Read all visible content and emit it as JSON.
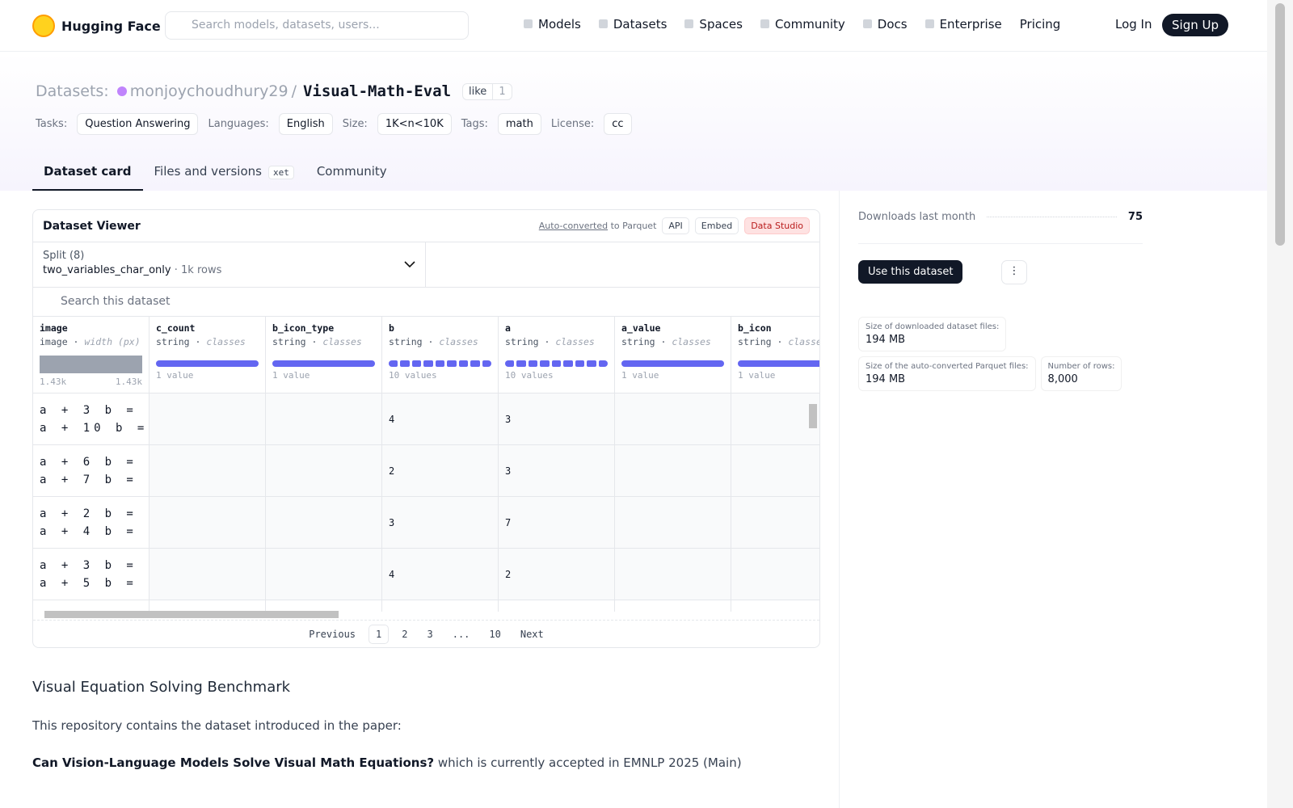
{
  "nav": {
    "brand": "Hugging Face",
    "search_placeholder": "Search models, datasets, users...",
    "links": [
      "Models",
      "Datasets",
      "Spaces",
      "Community",
      "Docs",
      "Enterprise",
      "Pricing"
    ],
    "login": "Log In",
    "signup": "Sign Up"
  },
  "header": {
    "section": "Datasets:",
    "owner": "monjoychoudhury29",
    "separator": "/",
    "name": "Visual-Math-Eval",
    "like": "like",
    "likes": 1,
    "tags": [
      {
        "key": "Tasks:",
        "value": "Question Answering"
      },
      {
        "key": "Languages:",
        "value": "English"
      },
      {
        "key": "Size:",
        "value": "1K<n<10K"
      },
      {
        "key": "Tags:",
        "value": "math"
      },
      {
        "key": "License:",
        "value": "cc"
      }
    ]
  },
  "tabs": [
    "Dataset card",
    "Files and versions",
    "Community"
  ],
  "xet_badge": "xet",
  "viewer": {
    "title": "Dataset Viewer",
    "auto_converted": "Auto-converted",
    "to_parquet": "to Parquet",
    "api": "API",
    "embed": "Embed",
    "data_studio": "Data Studio",
    "split_label": "Split (8)",
    "split": "two_variables_char_only",
    "rows_label": "1k rows",
    "search_placeholder": "Search this dataset",
    "columns": [
      {
        "name": "image",
        "type": "image",
        "detail": "width (px)",
        "summary": [
          "1.43k",
          "1.43k"
        ]
      },
      {
        "name": "c_count",
        "type": "string",
        "detail": "classes",
        "summary": [
          "1 value"
        ]
      },
      {
        "name": "b_icon_type",
        "type": "string",
        "detail": "classes",
        "summary": [
          "1 value"
        ]
      },
      {
        "name": "b",
        "type": "string",
        "detail": "classes",
        "summary": [
          "10 values"
        ]
      },
      {
        "name": "a",
        "type": "string",
        "detail": "classes",
        "summary": [
          "10 values"
        ]
      },
      {
        "name": "a_value",
        "type": "string",
        "detail": "classes",
        "summary": [
          "1 value"
        ]
      },
      {
        "name": "b_icon",
        "type": "string",
        "detail": "classes",
        "summary": [
          "1 value"
        ]
      }
    ],
    "rows": [
      [
        [
          "a + 3 b =",
          "a + 10 b ="
        ],
        null,
        null,
        "4",
        "3",
        null,
        null
      ],
      [
        [
          "a + 6 b =",
          "a + 7 b ="
        ],
        null,
        null,
        "2",
        "3",
        null,
        null
      ],
      [
        [
          "a + 2 b =",
          "a + 4 b ="
        ],
        null,
        null,
        "3",
        "7",
        null,
        null
      ],
      [
        [
          "a + 3 b =",
          "a + 5 b ="
        ],
        null,
        null,
        "4",
        "2",
        null,
        null
      ]
    ],
    "pagination": [
      "Previous",
      "1",
      "2",
      "3",
      "...",
      "10",
      "Next"
    ]
  },
  "sidebar": {
    "downloads_label": "Downloads last month",
    "downloads": 75,
    "use_button": "Use this dataset",
    "stats": [
      {
        "label": "Size of downloaded dataset files:",
        "value": "194 MB"
      },
      {
        "label": "Size of the auto-converted Parquet files:",
        "value": "194 MB"
      },
      {
        "label": "Number of rows:",
        "value": "8,000"
      }
    ]
  },
  "card": {
    "heading": "Visual Equation Solving Benchmark",
    "intro": "This repository contains the dataset introduced in the paper:",
    "paper_title": "Can Vision-Language Models Solve Visual Math Equations?",
    "paper_note": "which is currently accepted in EMNLP 2025 (Main)"
  }
}
